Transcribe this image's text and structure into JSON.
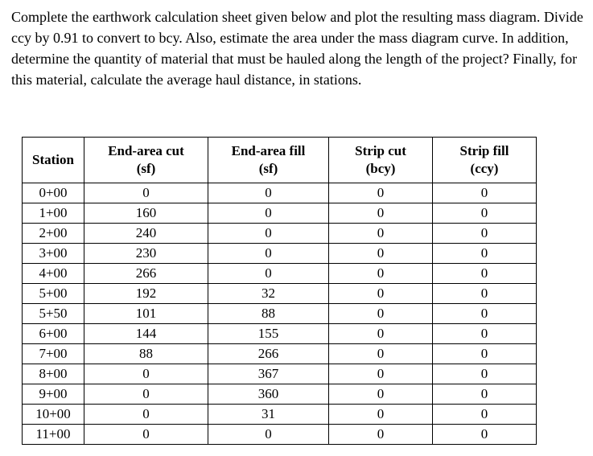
{
  "problem": {
    "text": "Complete the earthwork calculation sheet given below and plot the resulting mass diagram. Divide ccy by 0.91 to convert to bcy. Also, estimate the area under the mass diagram curve. In addition, determine the quantity of material that must be hauled along the length of the project? Finally, for this material, calculate the average haul distance, in stations."
  },
  "table": {
    "columns": [
      {
        "label": "Station",
        "unit": ""
      },
      {
        "label": "End-area cut",
        "unit": "(sf)"
      },
      {
        "label": "End-area fill",
        "unit": "(sf)"
      },
      {
        "label": "Strip cut",
        "unit": "(bcy)"
      },
      {
        "label": "Strip fill",
        "unit": "(ccy)"
      }
    ],
    "rows": [
      {
        "station": "0+00",
        "end_area_cut": "0",
        "end_area_fill": "0",
        "strip_cut": "0",
        "strip_fill": "0"
      },
      {
        "station": "1+00",
        "end_area_cut": "160",
        "end_area_fill": "0",
        "strip_cut": "0",
        "strip_fill": "0"
      },
      {
        "station": "2+00",
        "end_area_cut": "240",
        "end_area_fill": "0",
        "strip_cut": "0",
        "strip_fill": "0"
      },
      {
        "station": "3+00",
        "end_area_cut": "230",
        "end_area_fill": "0",
        "strip_cut": "0",
        "strip_fill": "0"
      },
      {
        "station": "4+00",
        "end_area_cut": "266",
        "end_area_fill": "0",
        "strip_cut": "0",
        "strip_fill": "0"
      },
      {
        "station": "5+00",
        "end_area_cut": "192",
        "end_area_fill": "32",
        "strip_cut": "0",
        "strip_fill": "0"
      },
      {
        "station": "5+50",
        "end_area_cut": "101",
        "end_area_fill": "88",
        "strip_cut": "0",
        "strip_fill": "0"
      },
      {
        "station": "6+00",
        "end_area_cut": "144",
        "end_area_fill": "155",
        "strip_cut": "0",
        "strip_fill": "0"
      },
      {
        "station": "7+00",
        "end_area_cut": "88",
        "end_area_fill": "266",
        "strip_cut": "0",
        "strip_fill": "0"
      },
      {
        "station": "8+00",
        "end_area_cut": "0",
        "end_area_fill": "367",
        "strip_cut": "0",
        "strip_fill": "0"
      },
      {
        "station": "9+00",
        "end_area_cut": "0",
        "end_area_fill": "360",
        "strip_cut": "0",
        "strip_fill": "0"
      },
      {
        "station": "10+00",
        "end_area_cut": "0",
        "end_area_fill": "31",
        "strip_cut": "0",
        "strip_fill": "0"
      },
      {
        "station": "11+00",
        "end_area_cut": "0",
        "end_area_fill": "0",
        "strip_cut": "0",
        "strip_fill": "0"
      }
    ]
  },
  "colors": {
    "text": "#000000",
    "border": "#000000",
    "background": "#ffffff"
  }
}
